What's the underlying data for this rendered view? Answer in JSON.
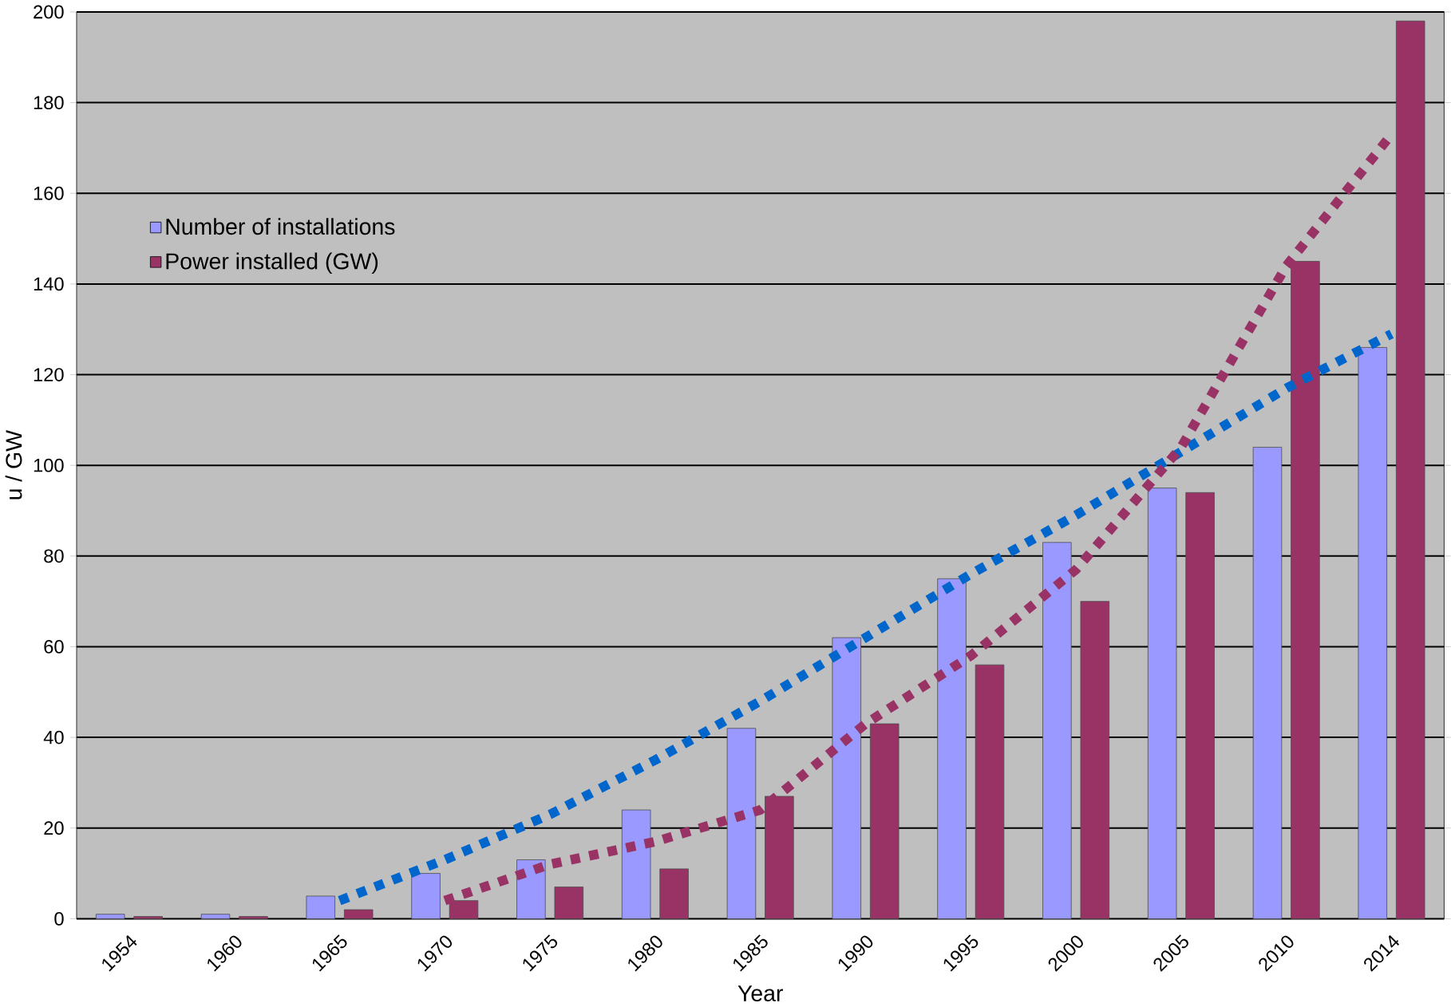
{
  "chart_data": {
    "type": "bar",
    "xlabel": "Year",
    "ylabel": "u / GW",
    "categories": [
      "1954",
      "1960",
      "1965",
      "1970",
      "1975",
      "1980",
      "1985",
      "1990",
      "1995",
      "2000",
      "2005",
      "2010",
      "2014"
    ],
    "series": [
      {
        "name": "Number of installations",
        "color": "#9999ff",
        "values": [
          1,
          1,
          5,
          10,
          13,
          24,
          42,
          62,
          75,
          83,
          95,
          104,
          126
        ]
      },
      {
        "name": "Power installed (GW)",
        "color": "#993366",
        "values": [
          0.5,
          0.5,
          2,
          4,
          7,
          11,
          27,
          43,
          56,
          70,
          94,
          145,
          198
        ]
      },
      {
        "type": "line",
        "color": "#0066cc",
        "line_style": "dotted",
        "values": [
          null,
          null,
          4,
          13,
          23,
          35,
          48,
          62,
          76,
          89,
          103,
          117,
          129
        ]
      },
      {
        "type": "line",
        "color": "#993366",
        "line_style": "dotted",
        "values": [
          null,
          null,
          null,
          4,
          12,
          17,
          24,
          43,
          58,
          77,
          104,
          144,
          173
        ]
      }
    ],
    "ylim": [
      0,
      200
    ],
    "yticks": [
      0,
      20,
      40,
      60,
      80,
      100,
      120,
      140,
      160,
      180,
      200
    ],
    "grid": "y",
    "legend": "top left"
  }
}
